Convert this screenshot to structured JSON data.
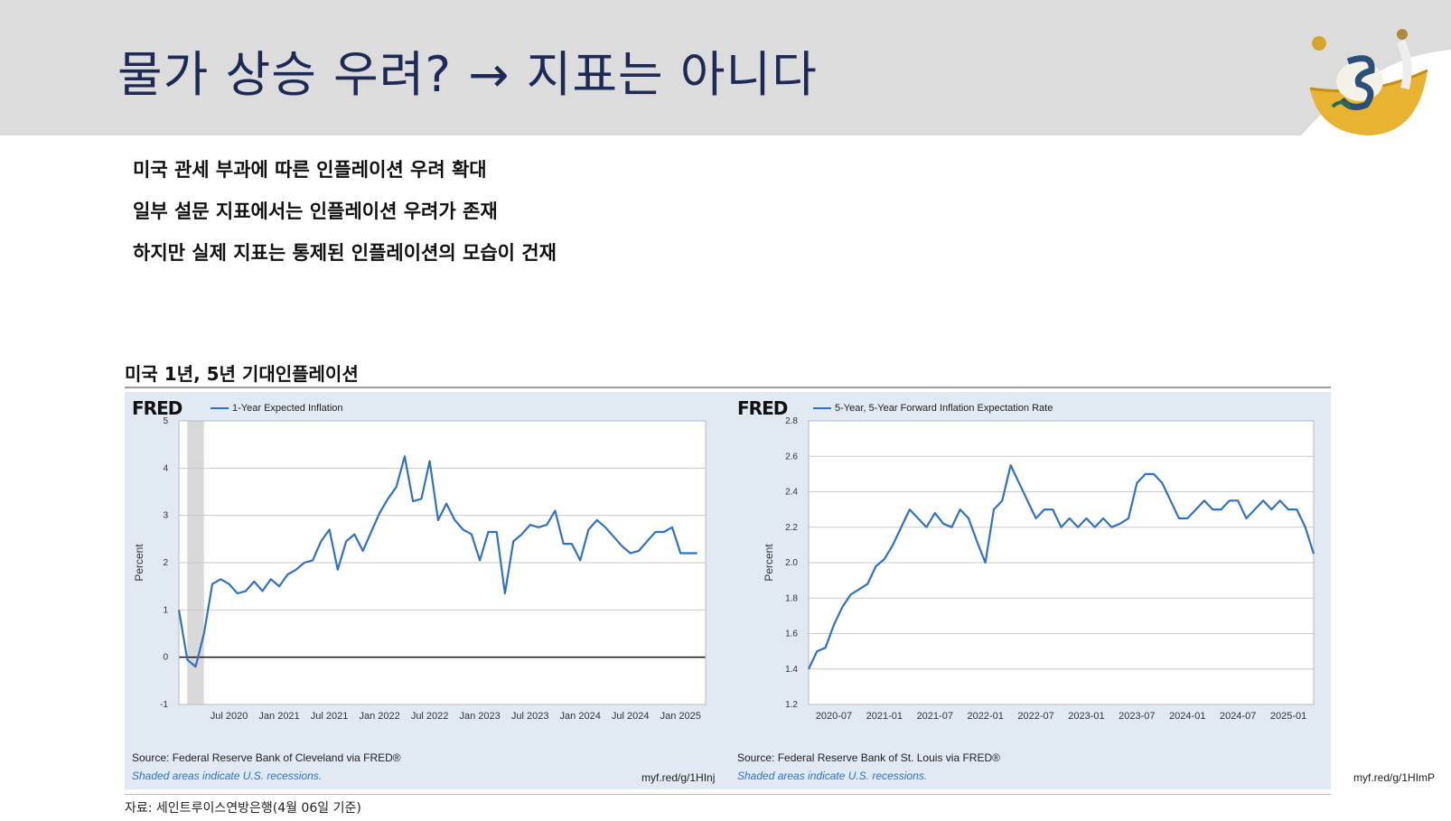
{
  "slide": {
    "title": "물가 상승 우려? → 지표는 아니다",
    "bullets": [
      "미국 관세 부과에 따른 인플레이션 우려 확대",
      "일부 설문 지표에서는 인플레이션 우려가 존재",
      "하지만 실제 지표는 통제된 인플레이션의 모습이 건재"
    ],
    "section_title": "미국 1년, 5년 기대인플레이션",
    "footnote": "자료:  세인트루이스연방은행(4월 06일 기준)"
  },
  "colors": {
    "title": "#1c2a55",
    "chart_bg": "#e1e9f3",
    "series_line": "#2f72c1",
    "header_band": "#dcdcdc"
  },
  "charts": [
    {
      "brand": "FRED",
      "legend": "1-Year Expected Inflation",
      "source": "Source: Federal Reserve Bank of Cleveland via FRED®",
      "shade_note": "Shaded areas indicate U.S. recessions.",
      "short_url": "myf.red/g/1HInj"
    },
    {
      "brand": "FRED",
      "legend": "5-Year, 5-Year Forward Inflation Expectation Rate",
      "source": "Source: Federal Reserve Bank of St. Louis via FRED®",
      "shade_note": "Shaded areas indicate U.S. recessions.",
      "short_url": "myf.red/g/1HImP"
    }
  ],
  "chart_data": [
    {
      "type": "line",
      "title": "",
      "ylabel": "Percent",
      "xlabel": "",
      "ylim": [
        -1,
        5
      ],
      "yticks": [
        "5",
        "4",
        "3",
        "2",
        "1",
        "0",
        "-1"
      ],
      "xlim": [
        "2020-01",
        "2025-04"
      ],
      "xticks": [
        "Jul 2020",
        "Jan 2021",
        "Jul 2021",
        "Jan 2022",
        "Jul 2022",
        "Jan 2023",
        "Jul 2023",
        "Jan 2024",
        "Jul 2024",
        "Jan 2025"
      ],
      "recession": [
        "2020-02",
        "2020-04"
      ],
      "series": [
        {
          "name": "1-Year Expected Inflation",
          "x": [
            "2020-01",
            "2020-02",
            "2020-03",
            "2020-04",
            "2020-05",
            "2020-06",
            "2020-07",
            "2020-08",
            "2020-09",
            "2020-10",
            "2020-11",
            "2020-12",
            "2021-01",
            "2021-02",
            "2021-03",
            "2021-04",
            "2021-05",
            "2021-06",
            "2021-07",
            "2021-08",
            "2021-09",
            "2021-10",
            "2021-11",
            "2021-12",
            "2022-01",
            "2022-02",
            "2022-03",
            "2022-04",
            "2022-05",
            "2022-06",
            "2022-07",
            "2022-08",
            "2022-09",
            "2022-10",
            "2022-11",
            "2022-12",
            "2023-01",
            "2023-02",
            "2023-03",
            "2023-04",
            "2023-05",
            "2023-06",
            "2023-07",
            "2023-08",
            "2023-09",
            "2023-10",
            "2023-11",
            "2023-12",
            "2024-01",
            "2024-02",
            "2024-03",
            "2024-04",
            "2024-05",
            "2024-06",
            "2024-07",
            "2024-08",
            "2024-09",
            "2024-10",
            "2024-11",
            "2024-12",
            "2025-01",
            "2025-02",
            "2025-03"
          ],
          "values": [
            1.0,
            -0.05,
            -0.2,
            0.5,
            1.55,
            1.65,
            1.55,
            1.35,
            1.4,
            1.6,
            1.4,
            1.65,
            1.5,
            1.75,
            1.85,
            2.0,
            2.05,
            2.45,
            2.7,
            1.85,
            2.45,
            2.6,
            2.25,
            2.65,
            3.05,
            3.35,
            3.6,
            4.25,
            3.3,
            3.35,
            4.15,
            2.9,
            3.25,
            2.9,
            2.7,
            2.6,
            2.05,
            2.65,
            2.65,
            1.35,
            2.45,
            2.6,
            2.8,
            2.75,
            2.8,
            3.1,
            2.4,
            2.4,
            2.05,
            2.7,
            2.9,
            2.75,
            2.55,
            2.35,
            2.2,
            2.25,
            2.45,
            2.65,
            2.65,
            2.75,
            2.2,
            2.2,
            2.2
          ]
        }
      ],
      "grid": true,
      "zero_line": true
    },
    {
      "type": "line",
      "title": "",
      "ylabel": "Percent",
      "xlabel": "",
      "ylim": [
        1.2,
        2.8
      ],
      "yticks": [
        "2.8",
        "2.6",
        "2.4",
        "2.2",
        "2.0",
        "1.8",
        "1.6",
        "1.4",
        "1.2"
      ],
      "xlim": [
        "2020-04",
        "2025-04"
      ],
      "xticks": [
        "2020-07",
        "2021-01",
        "2021-07",
        "2022-01",
        "2022-07",
        "2023-01",
        "2023-07",
        "2024-01",
        "2024-07",
        "2025-01"
      ],
      "series": [
        {
          "name": "5-Year, 5-Year Forward Inflation Expectation Rate",
          "x": [
            "2020-04",
            "2020-05",
            "2020-06",
            "2020-07",
            "2020-08",
            "2020-09",
            "2020-10",
            "2020-11",
            "2020-12",
            "2021-01",
            "2021-02",
            "2021-03",
            "2021-04",
            "2021-05",
            "2021-06",
            "2021-07",
            "2021-08",
            "2021-09",
            "2021-10",
            "2021-11",
            "2021-12",
            "2022-01",
            "2022-02",
            "2022-03",
            "2022-04",
            "2022-05",
            "2022-06",
            "2022-07",
            "2022-08",
            "2022-09",
            "2022-10",
            "2022-11",
            "2022-12",
            "2023-01",
            "2023-02",
            "2023-03",
            "2023-04",
            "2023-05",
            "2023-06",
            "2023-07",
            "2023-08",
            "2023-09",
            "2023-10",
            "2023-11",
            "2023-12",
            "2024-01",
            "2024-02",
            "2024-03",
            "2024-04",
            "2024-05",
            "2024-06",
            "2024-07",
            "2024-08",
            "2024-09",
            "2024-10",
            "2024-11",
            "2024-12",
            "2025-01",
            "2025-02",
            "2025-03",
            "2025-04"
          ],
          "values": [
            1.4,
            1.5,
            1.52,
            1.65,
            1.75,
            1.82,
            1.85,
            1.88,
            1.98,
            2.02,
            2.1,
            2.2,
            2.3,
            2.25,
            2.2,
            2.28,
            2.22,
            2.2,
            2.3,
            2.25,
            2.12,
            2.0,
            2.3,
            2.35,
            2.55,
            2.45,
            2.35,
            2.25,
            2.3,
            2.3,
            2.2,
            2.25,
            2.2,
            2.25,
            2.2,
            2.25,
            2.2,
            2.22,
            2.25,
            2.45,
            2.5,
            2.5,
            2.45,
            2.35,
            2.25,
            2.25,
            2.3,
            2.35,
            2.3,
            2.3,
            2.35,
            2.35,
            2.25,
            2.3,
            2.35,
            2.3,
            2.35,
            2.3,
            2.3,
            2.2,
            2.05
          ]
        }
      ],
      "grid": true
    }
  ]
}
